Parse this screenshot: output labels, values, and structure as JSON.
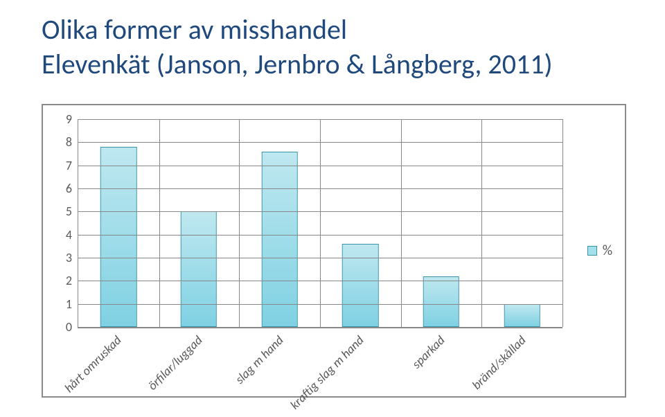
{
  "title_line1": "Olika former av misshandel",
  "title_line2": "Elevenkät (Janson, Jernbro & Långberg, 2011)",
  "title_color": "#1f497d",
  "title_fontsize": 40,
  "chart": {
    "type": "bar",
    "categories": [
      "hårt omruskad",
      "örfilar/luggad",
      "slag m hand",
      "kraftig slag m hand",
      "sparkad",
      "bränd/skållad"
    ],
    "values": [
      7.8,
      5.0,
      7.6,
      3.6,
      2.2,
      1.0
    ],
    "ylim": [
      0,
      9
    ],
    "ytick_step": 1,
    "bar_fill_top": "#bfe8f0",
    "bar_fill_bottom": "#7fd1e3",
    "bar_border": "#3793a8",
    "grid_color": "#888888",
    "label_fontsize": 18,
    "label_color": "#595959",
    "bar_width_ratio": 0.45,
    "legend_label": "%",
    "legend_swatch_fill": "#a4dfec",
    "legend_swatch_border": "#3793a8",
    "background_color": "#ffffff"
  }
}
